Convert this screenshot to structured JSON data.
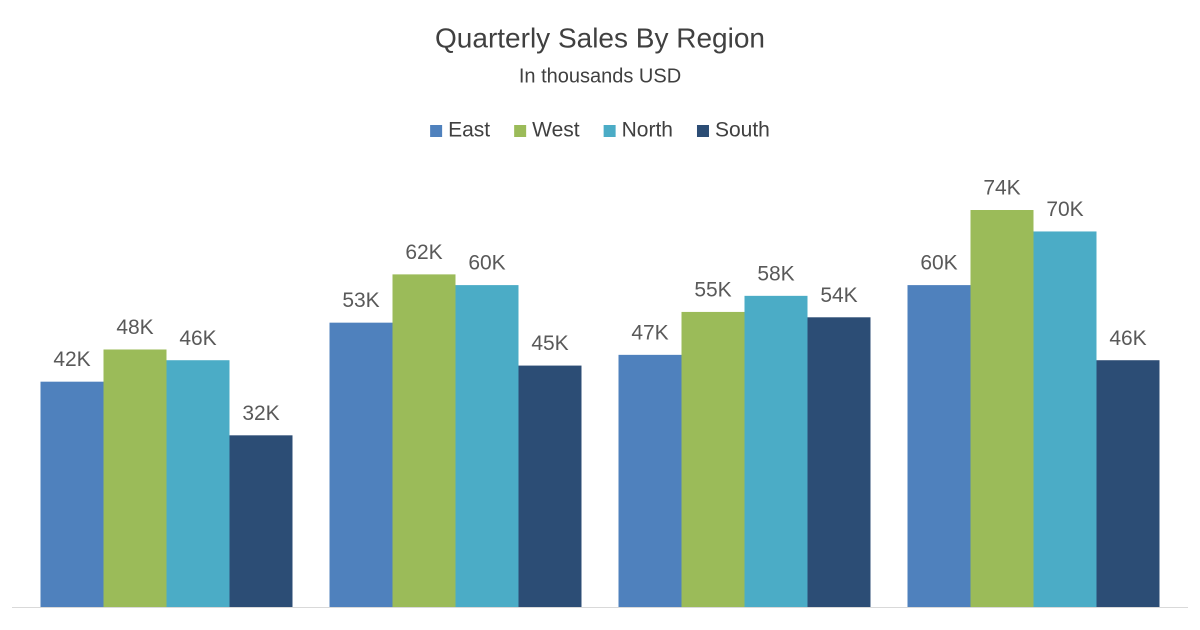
{
  "chart_data": {
    "type": "bar",
    "title": "Quarterly Sales By Region",
    "subtitle": "In thousands USD",
    "categories": [
      null,
      null,
      null,
      null
    ],
    "series": [
      {
        "name": "East",
        "color": "#4f81bd",
        "values": [
          42,
          53,
          47,
          60
        ],
        "value_labels": [
          "42K",
          "53K",
          "47K",
          "60K"
        ]
      },
      {
        "name": "West",
        "color": "#9bbb59",
        "values": [
          48,
          62,
          55,
          74
        ],
        "value_labels": [
          "48K",
          "62K",
          "55K",
          "74K"
        ]
      },
      {
        "name": "North",
        "color": "#4bacc6",
        "values": [
          46,
          60,
          58,
          70
        ],
        "value_labels": [
          "46K",
          "60K",
          "58K",
          "70K"
        ]
      },
      {
        "name": "South",
        "color": "#2c4d75",
        "values": [
          32,
          45,
          54,
          46
        ],
        "value_labels": [
          "32K",
          "45K",
          "54K",
          "46K"
        ]
      }
    ],
    "legend": "top"
  }
}
